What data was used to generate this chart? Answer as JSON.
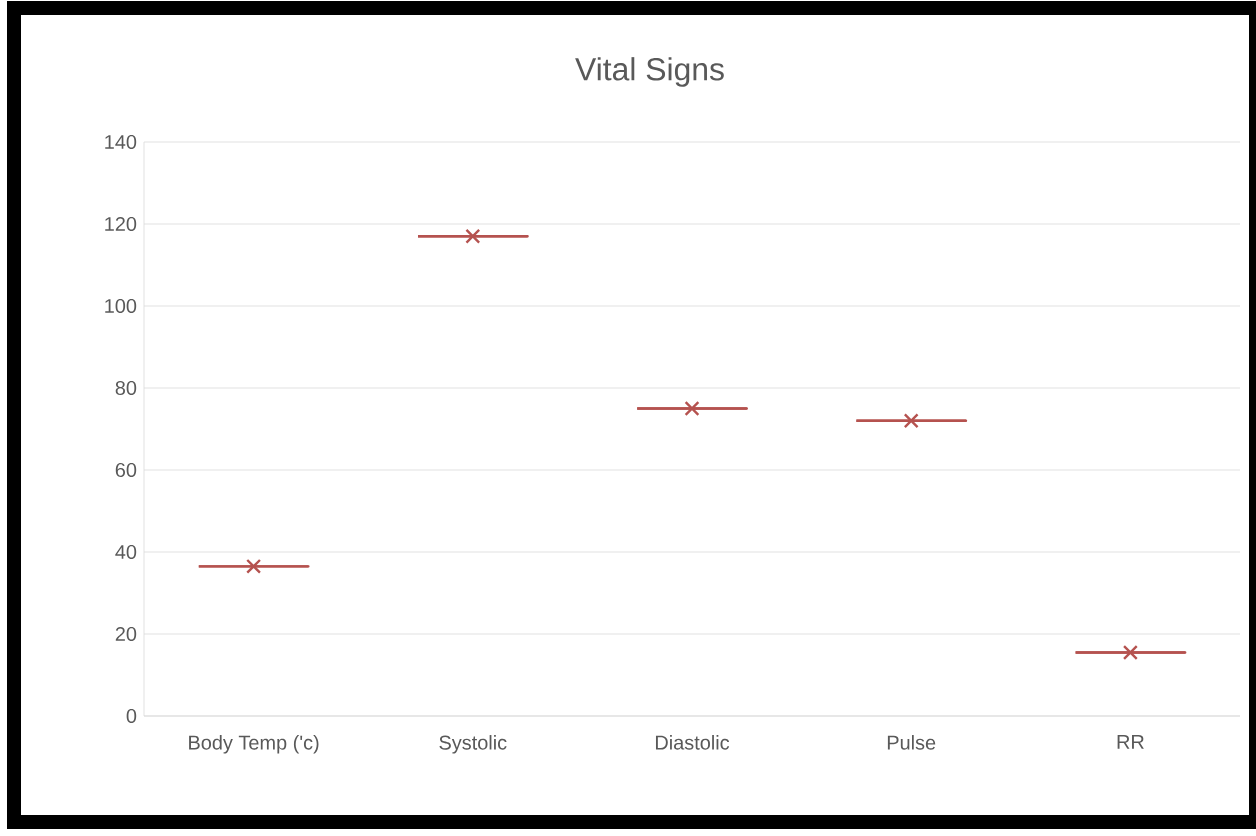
{
  "chart_data": {
    "type": "box",
    "title": "Vital Signs",
    "categories": [
      "Body Temp ('c)",
      "Systolic",
      "Diastolic",
      "Pulse",
      "RR"
    ],
    "boxes": [
      {
        "low": 36.5,
        "q1": 36.5,
        "median": 36.5,
        "q3": 36.5,
        "high": 36.5,
        "mean": 36.5
      },
      {
        "low": 117,
        "q1": 117,
        "median": 117,
        "q3": 117,
        "high": 117,
        "mean": 117
      },
      {
        "low": 75,
        "q1": 75,
        "median": 75,
        "q3": 75,
        "high": 75,
        "mean": 75
      },
      {
        "low": 72,
        "q1": 72,
        "median": 72,
        "q3": 72,
        "high": 72,
        "mean": 72
      },
      {
        "low": 15.5,
        "q1": 15.5,
        "median": 15.5,
        "q3": 15.5,
        "high": 15.5,
        "mean": 15.5
      }
    ],
    "color": "#b5524f",
    "ylim": [
      0,
      140
    ],
    "yticks": [
      0,
      20,
      40,
      60,
      80,
      100,
      120,
      140
    ],
    "grid": "y"
  }
}
